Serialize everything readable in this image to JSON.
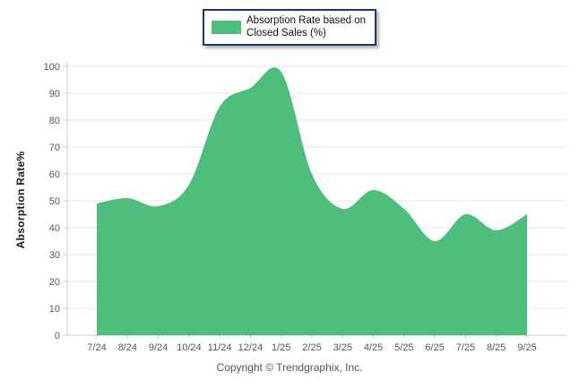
{
  "legend": {
    "line1": "Absorption Rate based on",
    "line2": "Closed Sales (%)"
  },
  "footer": {
    "text": "Copyright © Trendgraphix, Inc."
  },
  "colors": {
    "series_green": "#4fbe7d",
    "legend_border": "#1f3966",
    "gridline": "#e7e7e7",
    "axis_line": "#cccccc",
    "tick_text": "#555555",
    "ylabel_text": "#1a1a1a"
  },
  "chart_data": {
    "type": "area",
    "title": "",
    "series_name": "Absorption Rate based on Closed Sales (%)",
    "categories": [
      "7/24",
      "8/24",
      "9/24",
      "10/24",
      "11/24",
      "12/24",
      "1/25",
      "2/25",
      "3/25",
      "4/25",
      "5/25",
      "6/25",
      "7/25",
      "8/25",
      "9/25"
    ],
    "values": [
      49,
      51,
      48,
      56,
      85,
      92,
      98,
      60,
      47,
      54,
      47,
      35,
      45,
      39,
      45
    ],
    "xlabel": "",
    "ylabel": "Absorption Rate%",
    "ylim": [
      0,
      100
    ],
    "ytick_step": 10,
    "grid": true,
    "legend_position": "top-center",
    "fill_color": "#4fbe7d",
    "smooth": true
  }
}
